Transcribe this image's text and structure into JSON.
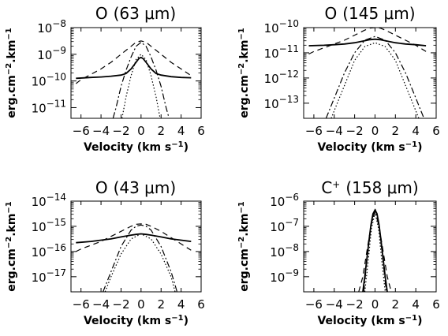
{
  "chart_data": [
    {
      "type": "line",
      "title_main": "O",
      "title_sup": "",
      "title_rest": "(63 μm)",
      "xlabel_main": "Velocity (km s",
      "xlabel_sup": "−1",
      "xlabel_close": ")",
      "ylabel_main": "erg.cm",
      "ylabel_sup1": "−2",
      "ylabel_mid": ".km",
      "ylabel_sup2": "−1",
      "xlim": [
        -7,
        6
      ],
      "ylim_log10": [
        -11.4,
        -8
      ],
      "xticks": [
        {
          "label": "−6",
          "v": -6
        },
        {
          "label": "−4",
          "v": -4
        },
        {
          "label": "−2",
          "v": -2
        },
        {
          "label": "0",
          "v": 0
        },
        {
          "label": "2",
          "v": 2
        },
        {
          "label": "4",
          "v": 4
        },
        {
          "label": "6",
          "v": 6
        }
      ],
      "yticks": [
        {
          "v": -8,
          "base": "10",
          "exp": "−8"
        },
        {
          "v": -9,
          "base": "10",
          "exp": "−9"
        },
        {
          "v": -10,
          "base": "10",
          "exp": "−10"
        },
        {
          "v": -11,
          "base": "10",
          "exp": "−11"
        }
      ],
      "series": [
        {
          "style": "solid",
          "x": [
            -6.5,
            -5,
            -4,
            -3,
            -2,
            -1.5,
            -1,
            -0.5,
            -0.2,
            0,
            0.2,
            0.5,
            1,
            1.5,
            2,
            3,
            4,
            5
          ],
          "y": [
            -9.9,
            -9.87,
            -9.85,
            -9.82,
            -9.78,
            -9.72,
            -9.55,
            -9.3,
            -9.15,
            -9.12,
            -9.16,
            -9.3,
            -9.55,
            -9.72,
            -9.78,
            -9.84,
            -9.87,
            -9.88
          ]
        },
        {
          "style": "dashed",
          "x": [
            -6.5,
            -6,
            -5,
            -4,
            -3,
            -2,
            -1,
            -0.5,
            0,
            0.5,
            1,
            2,
            3,
            4,
            5
          ],
          "y": [
            -10.1,
            -9.95,
            -9.75,
            -9.55,
            -9.3,
            -9.0,
            -8.7,
            -8.55,
            -8.5,
            -8.55,
            -8.7,
            -9.0,
            -9.3,
            -9.55,
            -9.8
          ]
        },
        {
          "style": "dashdot",
          "x": [
            -2.8,
            -2.5,
            -2,
            -1.5,
            -1,
            -0.5,
            0,
            0.5,
            1,
            1.5,
            2,
            2.5,
            2.8
          ],
          "y": [
            -11.4,
            -11.0,
            -10.2,
            -9.6,
            -9.1,
            -8.7,
            -8.55,
            -8.7,
            -9.1,
            -9.6,
            -10.2,
            -11.0,
            -11.4
          ]
        },
        {
          "style": "dotted",
          "x": [
            -1.9,
            -1.5,
            -1,
            -0.5,
            0,
            0.5,
            1,
            1.5,
            1.9
          ],
          "y": [
            -11.4,
            -10.6,
            -9.8,
            -9.2,
            -9.0,
            -9.2,
            -9.8,
            -10.6,
            -11.4
          ]
        }
      ]
    },
    {
      "type": "line",
      "title_main": "O",
      "title_sup": "",
      "title_rest": "(145 μm)",
      "xlabel_main": "Velocity (km s",
      "xlabel_sup": "−1",
      "xlabel_close": ")",
      "ylabel_main": "erg.cm",
      "ylabel_sup1": "−2",
      "ylabel_mid": ".km",
      "ylabel_sup2": "−1",
      "xlim": [
        -7,
        6
      ],
      "ylim_log10": [
        -13.6,
        -10
      ],
      "xticks": [
        {
          "label": "−6",
          "v": -6
        },
        {
          "label": "−4",
          "v": -4
        },
        {
          "label": "−2",
          "v": -2
        },
        {
          "label": "0",
          "v": 0
        },
        {
          "label": "2",
          "v": 2
        },
        {
          "label": "4",
          "v": 4
        },
        {
          "label": "6",
          "v": 6
        }
      ],
      "yticks": [
        {
          "v": -10,
          "base": "10",
          "exp": "−10"
        },
        {
          "v": -11,
          "base": "10",
          "exp": "−11"
        },
        {
          "v": -12,
          "base": "10",
          "exp": "−12"
        },
        {
          "v": -13,
          "base": "10",
          "exp": "−13"
        }
      ],
      "series": [
        {
          "style": "solid",
          "x": [
            -6.5,
            -5,
            -4,
            -3,
            -2,
            -1,
            -0.5,
            0,
            0.5,
            1,
            2,
            3,
            4,
            5
          ],
          "y": [
            -10.72,
            -10.7,
            -10.68,
            -10.65,
            -10.6,
            -10.52,
            -10.48,
            -10.46,
            -10.48,
            -10.52,
            -10.6,
            -10.65,
            -10.68,
            -10.72
          ]
        },
        {
          "style": "dashed",
          "x": [
            -6.5,
            -6,
            -5,
            -4,
            -3,
            -2,
            -1,
            -0.5,
            0,
            0.5,
            1,
            2,
            3,
            4,
            5
          ],
          "y": [
            -11.05,
            -10.95,
            -10.8,
            -10.65,
            -10.5,
            -10.3,
            -10.1,
            -10.02,
            -10.0,
            -10.02,
            -10.1,
            -10.3,
            -10.5,
            -10.7,
            -10.95
          ]
        },
        {
          "style": "dashdot",
          "x": [
            -4.8,
            -4,
            -3,
            -2,
            -1,
            0,
            1,
            2,
            3,
            4,
            4.8
          ],
          "y": [
            -13.6,
            -12.8,
            -11.8,
            -11.0,
            -10.5,
            -10.35,
            -10.5,
            -11.0,
            -11.8,
            -12.8,
            -13.6
          ]
        },
        {
          "style": "dotted",
          "x": [
            -4.3,
            -3.5,
            -3,
            -2,
            -1,
            0,
            1,
            2,
            3,
            3.5,
            4.3
          ],
          "y": [
            -13.6,
            -12.8,
            -12.3,
            -11.3,
            -10.75,
            -10.6,
            -10.75,
            -11.3,
            -12.3,
            -12.8,
            -13.6
          ]
        }
      ]
    },
    {
      "type": "line",
      "title_main": "O",
      "title_sup": "",
      "title_rest": "(43 μm)",
      "xlabel_main": "Velocity (km s",
      "xlabel_sup": "−1",
      "xlabel_close": ")",
      "ylabel_main": "erg.cm",
      "ylabel_sup1": "−2",
      "ylabel_mid": ".km",
      "ylabel_sup2": "−1",
      "xlim": [
        -7,
        6
      ],
      "ylim_log10": [
        -17.6,
        -14
      ],
      "xticks": [
        {
          "label": "−6",
          "v": -6
        },
        {
          "label": "−4",
          "v": -4
        },
        {
          "label": "−2",
          "v": -2
        },
        {
          "label": "0",
          "v": 0
        },
        {
          "label": "2",
          "v": 2
        },
        {
          "label": "4",
          "v": 4
        },
        {
          "label": "6",
          "v": 6
        }
      ],
      "yticks": [
        {
          "v": -14,
          "base": "10",
          "exp": "−14"
        },
        {
          "v": -15,
          "base": "10",
          "exp": "−15"
        },
        {
          "v": -16,
          "base": "10",
          "exp": "−16"
        },
        {
          "v": -17,
          "base": "10",
          "exp": "−17"
        }
      ],
      "series": [
        {
          "style": "solid",
          "x": [
            -6.5,
            -5,
            -4,
            -3,
            -2,
            -1,
            -0.5,
            0,
            0.5,
            1,
            2,
            3,
            4,
            5
          ],
          "y": [
            -15.65,
            -15.6,
            -15.55,
            -15.5,
            -15.42,
            -15.35,
            -15.32,
            -15.3,
            -15.32,
            -15.35,
            -15.42,
            -15.5,
            -15.55,
            -15.6
          ]
        },
        {
          "style": "dashed",
          "x": [
            -6.5,
            -6,
            -5,
            -4,
            -3,
            -2,
            -1,
            -0.5,
            0,
            0.5,
            1,
            2,
            3,
            4,
            5
          ],
          "y": [
            -16.0,
            -15.9,
            -15.75,
            -15.6,
            -15.4,
            -15.2,
            -15.0,
            -14.92,
            -14.9,
            -14.92,
            -15.0,
            -15.2,
            -15.45,
            -15.7,
            -15.95
          ]
        },
        {
          "style": "dashdot",
          "x": [
            -3.8,
            -3,
            -2,
            -1,
            -0.5,
            0,
            0.5,
            1,
            2,
            3,
            3.6
          ],
          "y": [
            -17.6,
            -16.8,
            -15.8,
            -15.15,
            -15.0,
            -14.95,
            -15.0,
            -15.15,
            -15.8,
            -16.8,
            -17.6
          ]
        },
        {
          "style": "dotted",
          "x": [
            -3.6,
            -3,
            -2,
            -1,
            0,
            1,
            2,
            3,
            3.4
          ],
          "y": [
            -17.6,
            -17.0,
            -16.1,
            -15.5,
            -15.3,
            -15.5,
            -16.1,
            -17.0,
            -17.6
          ]
        }
      ]
    },
    {
      "type": "line",
      "title_main": "C",
      "title_sup": "+",
      "title_rest": "(158 μm)",
      "xlabel_main": "Velocity (km s",
      "xlabel_sup": "−1",
      "xlabel_close": ")",
      "ylabel_main": "erg.cm",
      "ylabel_sup1": "−2",
      "ylabel_mid": ".km",
      "ylabel_sup2": "−1",
      "xlim": [
        -7,
        6
      ],
      "ylim_log10": [
        -9.6,
        -6
      ],
      "xticks": [
        {
          "label": "−6",
          "v": -6
        },
        {
          "label": "−4",
          "v": -4
        },
        {
          "label": "−2",
          "v": -2
        },
        {
          "label": "0",
          "v": 0
        },
        {
          "label": "2",
          "v": 2
        },
        {
          "label": "4",
          "v": 4
        },
        {
          "label": "6",
          "v": 6
        }
      ],
      "yticks": [
        {
          "v": -6,
          "base": "10",
          "exp": "−6"
        },
        {
          "v": -7,
          "base": "10",
          "exp": "−7"
        },
        {
          "v": -8,
          "base": "10",
          "exp": "−8"
        },
        {
          "v": -9,
          "base": "10",
          "exp": "−9"
        }
      ],
      "series": [
        {
          "style": "solid",
          "x": [
            -1.2,
            -1,
            -0.8,
            -0.6,
            -0.4,
            -0.2,
            0,
            0.2,
            0.4,
            0.6,
            0.8,
            1,
            1.2
          ],
          "y": [
            -9.6,
            -9.0,
            -8.3,
            -7.6,
            -6.95,
            -6.5,
            -6.35,
            -6.5,
            -6.95,
            -7.6,
            -8.3,
            -9.0,
            -9.6
          ]
        },
        {
          "style": "dashed",
          "x": [
            -1.6,
            -1.2,
            -0.8,
            -0.4,
            -0.2,
            0,
            0.2,
            0.4,
            0.8,
            1.2,
            1.6
          ],
          "y": [
            -9.6,
            -9.0,
            -8.0,
            -7.0,
            -6.55,
            -6.3,
            -6.55,
            -7.0,
            -8.0,
            -9.0,
            -9.6
          ]
        },
        {
          "style": "dashdot",
          "x": [
            -1.1,
            -0.8,
            -0.4,
            0,
            0.4,
            0.8,
            1.1
          ],
          "y": [
            -9.6,
            -8.4,
            -7.0,
            -6.4,
            -7.0,
            -8.4,
            -9.6
          ]
        },
        {
          "style": "dotted",
          "x": [
            -1.0,
            -0.7,
            -0.35,
            0,
            0.35,
            0.7,
            1.0
          ],
          "y": [
            -9.6,
            -8.5,
            -7.1,
            -6.45,
            -7.1,
            -8.5,
            -9.6
          ]
        }
      ]
    }
  ]
}
